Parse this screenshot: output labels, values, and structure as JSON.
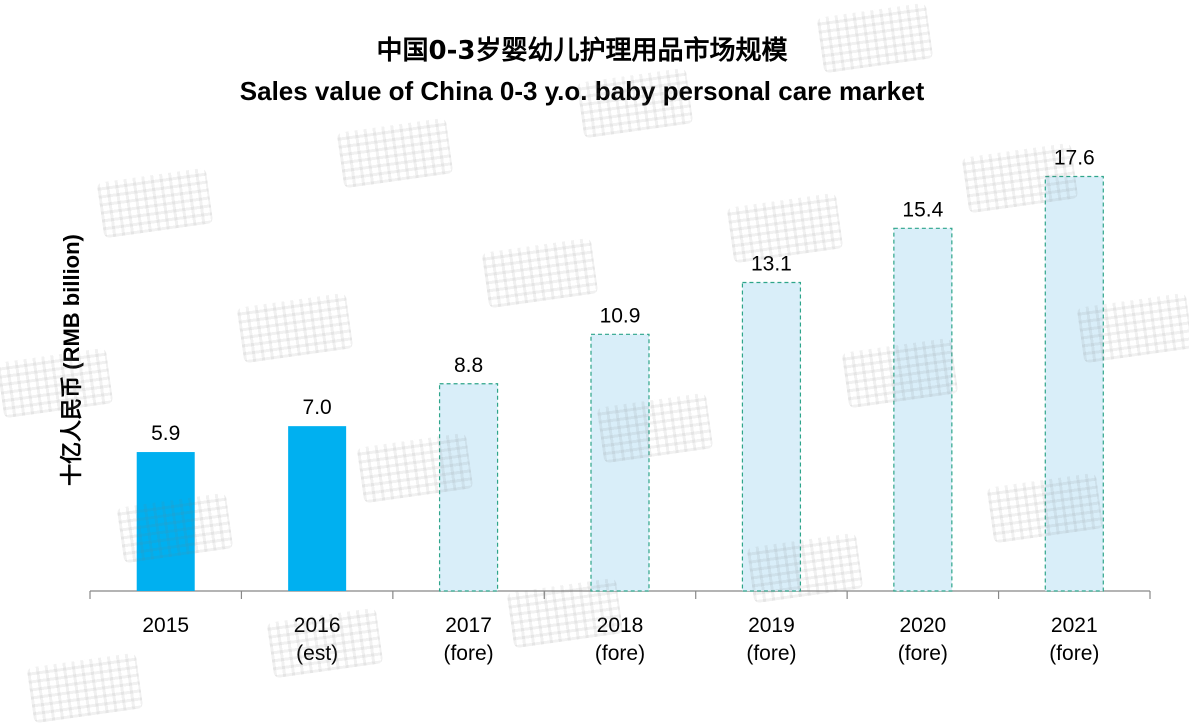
{
  "chart_data": {
    "type": "bar",
    "title": "中国0-3岁婴幼儿护理用品市场规模",
    "subtitle": "Sales value of China 0-3 y.o. baby personal care market",
    "ylabel_cn": "十亿人民币",
    "ylabel_en": "(RMB billion)",
    "xlabel": "",
    "ylim": [
      0,
      20
    ],
    "grid": false,
    "categories": [
      [
        "2015"
      ],
      [
        "2016",
        "(est)"
      ],
      [
        "2017",
        "(fore)"
      ],
      [
        "2018",
        "(fore)"
      ],
      [
        "2019",
        "(fore)"
      ],
      [
        "2020",
        "(fore)"
      ],
      [
        "2021",
        "(fore)"
      ]
    ],
    "values": [
      5.9,
      7.0,
      8.8,
      10.9,
      13.1,
      15.4,
      17.6
    ],
    "data_labels": [
      "5.9",
      "7.0",
      "8.8",
      "10.9",
      "13.1",
      "15.4",
      "17.6"
    ],
    "styles": [
      "actual",
      "actual",
      "forecast",
      "forecast",
      "forecast",
      "forecast",
      "forecast"
    ]
  },
  "colors": {
    "actual_fill": "#00B0F0",
    "forecast_fill": "#D9EEF9",
    "forecast_stroke": "#2EA58A",
    "axis": "#888888"
  }
}
